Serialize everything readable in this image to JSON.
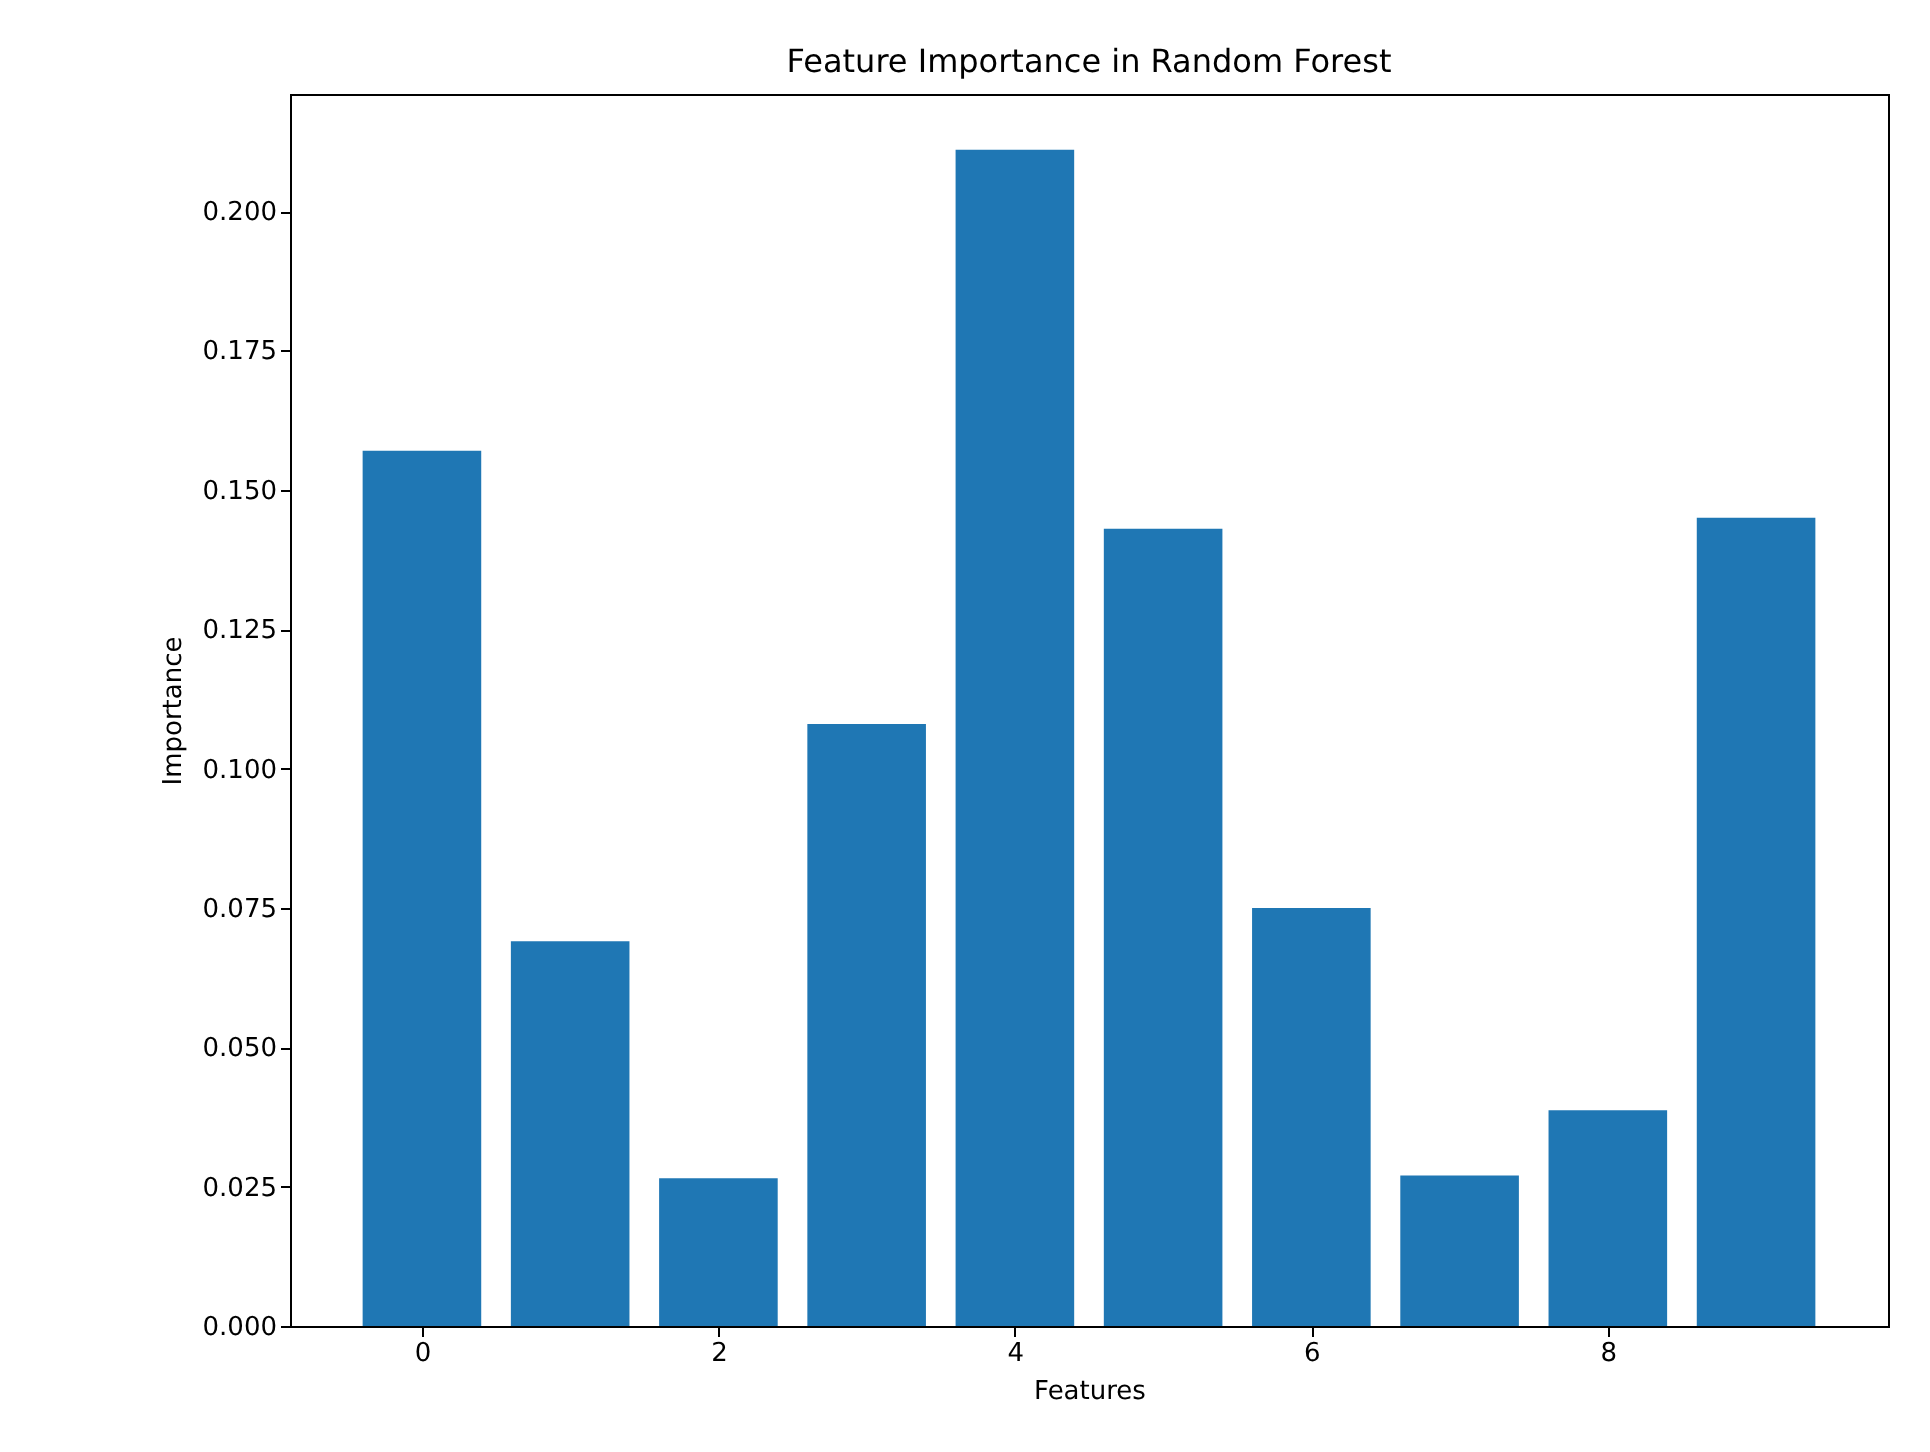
{
  "chart_data": {
    "type": "bar",
    "title": "Feature Importance in Random Forest",
    "xlabel": "Features",
    "ylabel": "Importance",
    "x": [
      0,
      1,
      2,
      3,
      4,
      5,
      6,
      7,
      8,
      9
    ],
    "values": [
      0.157,
      0.069,
      0.0265,
      0.108,
      0.211,
      0.143,
      0.075,
      0.027,
      0.0387,
      0.145
    ],
    "color": "#1f77b4",
    "xlim": [
      -0.89,
      9.89
    ],
    "xticks": [
      0,
      2,
      4,
      6,
      8
    ],
    "ylim": [
      0,
      0.221
    ],
    "yticks": [
      {
        "value": 0,
        "label": "0.000"
      },
      {
        "value": 0.025,
        "label": "0.025"
      },
      {
        "value": 0.05,
        "label": "0.050"
      },
      {
        "value": 0.075,
        "label": "0.075"
      },
      {
        "value": 0.1,
        "label": "0.100"
      },
      {
        "value": 0.125,
        "label": "0.125"
      },
      {
        "value": 0.15,
        "label": "0.150"
      },
      {
        "value": 0.175,
        "label": "0.175"
      },
      {
        "value": 0.2,
        "label": "0.200"
      }
    ],
    "grid": false
  }
}
